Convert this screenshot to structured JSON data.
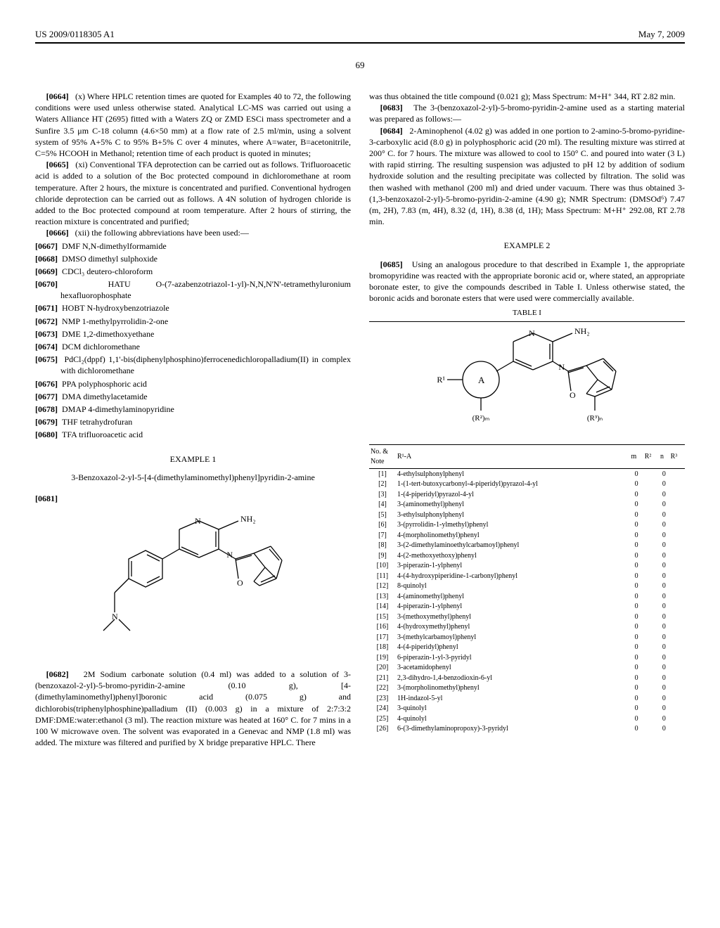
{
  "patent_no": "US 2009/0118305 A1",
  "pub_date": "May 7, 2009",
  "page_number": "69",
  "left": {
    "para0664": {
      "num": "[0664]",
      "text": "(x) Where HPLC retention times are quoted for Examples 40 to 72, the following conditions were used unless otherwise stated. Analytical LC-MS was carried out using a Waters Alliance HT (2695) fitted with a Waters ZQ or ZMD ESCi mass spectrometer and a Sunfire 3.5 μm C-18 column (4.6×50 mm) at a flow rate of 2.5 ml/min, using a solvent system of 95% A+5% C to 95% B+5% C over 4 minutes, where A=water, B=acetonitrile, C=5% HCOOH in Methanol; retention time of each product is quoted in minutes;"
    },
    "para0665": {
      "num": "[0665]",
      "text": "(xi) Conventional TFA deprotection can be carried out as follows. Trifluoroacetic acid is added to a solution of the Boc protected compound in dichloromethane at room temperature. After 2 hours, the mixture is concentrated and purified. Conventional hydrogen chloride deprotection can be carried out as follows. A 4N solution of hydrogen chloride is added to the Boc protected compound at room temperature. After 2 hours of stirring, the reaction mixture is concentrated and purified;"
    },
    "para0666": {
      "num": "[0666]",
      "text": "(xii) the following abbreviations have been used:—"
    },
    "abbrevs": [
      {
        "num": "[0667]",
        "body": "DMF N,N-dimethylformamide"
      },
      {
        "num": "[0668]",
        "body": "DMSO dimethyl sulphoxide"
      },
      {
        "num": "[0669]",
        "body": "CDCl₃ deutero-chloroform"
      },
      {
        "num": "[0670]",
        "body": "HATU O-(7-azabenzotriazol-1-yl)-N,N,N'N'-tetramethyluronium hexafluorophosphate"
      },
      {
        "num": "[0671]",
        "body": "HOBT N-hydroxybenzotriazole"
      },
      {
        "num": "[0672]",
        "body": "NMP 1-methylpyrrolidin-2-one"
      },
      {
        "num": "[0673]",
        "body": "DME 1,2-dimethoxyethane"
      },
      {
        "num": "[0674]",
        "body": "DCM dichloromethane"
      },
      {
        "num": "[0675]",
        "body": "PdCl₂(dppf) 1,1'-bis(diphenylphosphino)ferrocenedichloropalladium(II) in complex with dichloromethane"
      },
      {
        "num": "[0676]",
        "body": "PPA polyphosphoric acid"
      },
      {
        "num": "[0677]",
        "body": "DMA dimethylacetamide"
      },
      {
        "num": "[0678]",
        "body": "DMAP 4-dimethylaminopyridine"
      },
      {
        "num": "[0679]",
        "body": "THF tetrahydrofuran"
      },
      {
        "num": "[0680]",
        "body": "TFA trifluoroacetic acid"
      }
    ],
    "example1_head": "EXAMPLE 1",
    "example1_title": "3-Benzoxazol-2-yl-5-[4-(dimethylaminomethyl)phenyl]pyridin-2-amine",
    "para0681": "[0681]",
    "para0682": {
      "num": "[0682]",
      "text": "2M Sodium carbonate solution (0.4 ml) was added to a solution of 3-(benzoxazol-2-yl)-5-bromo-pyridin-2-amine (0.10 g), [4-(dimethylaminomethyl)phenyl]boronic acid (0.075 g) and dichlorobis(triphenylphosphine)palladium (II) (0.003 g) in a mixture of 2:7:3:2 DMF:DME:water:ethanol (3 ml). The reaction mixture was heated at 160° C. for 7 mins in a 100 W microwave oven. The solvent was evaporated in a Genevac and NMP (1.8 ml) was added. The mixture was filtered and purified by X bridge preparative HPLC. There"
    },
    "structure1": {
      "labels": {
        "N1": "N",
        "N2": "N",
        "N3": "N",
        "NH2": "NH₂",
        "O": "O"
      },
      "stroke": "#000000",
      "line_width": 1.3
    }
  },
  "right": {
    "para0682c": "was thus obtained the title compound (0.021 g); Mass Spectrum: M+H⁺ 344, RT 2.82 min.",
    "para0683": {
      "num": "[0683]",
      "text": "The 3-(benzoxazol-2-yl)-5-bromo-pyridin-2-amine used as a starting material was prepared as follows:—"
    },
    "para0684": {
      "num": "[0684]",
      "text": "2-Aminophenol (4.02 g) was added in one portion to 2-amino-5-bromo-pyridine-3-carboxylic acid (8.0 g) in polyphosphoric acid (20 ml). The resulting mixture was stirred at 200° C. for 7 hours. The mixture was allowed to cool to 150° C. and poured into water (3 L) with rapid stirring. The resulting suspension was adjusted to pH 12 by addition of sodium hydroxide solution and the resulting precipitate was collected by filtration. The solid was then washed with methanol (200 ml) and dried under vacuum. There was thus obtained 3-(1,3-benzoxazol-2-yl)-5-bromo-pyridin-2-amine (4.90 g); NMR Spectrum: (DMSOd⁶) 7.47 (m, 2H), 7.83 (m, 4H), 8.32 (d, 1H), 8.38 (d, 1H); Mass Spectrum: M+H⁺ 292.08, RT 2.78 min."
    },
    "example2_head": "EXAMPLE 2",
    "para0685": {
      "num": "[0685]",
      "text": "Using an analogous procedure to that described in Example 1, the appropriate bromopyridine was reacted with the appropriate boronic acid or, where stated, an appropriate boronate ester, to give the compounds described in Table I. Unless otherwise stated, the boronic acids and boronate esters that were used were commercially available."
    },
    "table_label": "TABLE I",
    "structure2": {
      "labels": {
        "R1": "R¹",
        "A": "A",
        "R2m": "(R²)ₘ",
        "R3n": "(R³)ₙ",
        "N1": "N",
        "N2": "N",
        "NH2": "NH₂",
        "O": "O"
      },
      "stroke": "#000000",
      "line_width": 1.3
    },
    "table": {
      "head": {
        "c1": "No. & Note",
        "c2": "R¹-A",
        "c3": "m",
        "c4": "R²",
        "c5": "n",
        "c6": "R³"
      },
      "rows": [
        [
          "[1]",
          "4-ethylsulphonylphenyl",
          "0",
          "",
          "0",
          ""
        ],
        [
          "[2]",
          "1-(1-tert-butoxycarbonyl-4-piperidyl)pyrazol-4-yl",
          "0",
          "",
          "0",
          ""
        ],
        [
          "[3]",
          "1-(4-piperidyl)pyrazol-4-yl",
          "0",
          "",
          "0",
          ""
        ],
        [
          "[4]",
          "3-(aminomethyl)phenyl",
          "0",
          "",
          "0",
          ""
        ],
        [
          "[5]",
          "3-ethylsulphonylphenyl",
          "0",
          "",
          "0",
          ""
        ],
        [
          "[6]",
          "3-(pyrrolidin-1-ylmethyl)phenyl",
          "0",
          "",
          "0",
          ""
        ],
        [
          "[7]",
          "4-(morpholinomethyl)phenyl",
          "0",
          "",
          "0",
          ""
        ],
        [
          "[8]",
          "3-(2-dimethylaminoethylcarbamoyl)phenyl",
          "0",
          "",
          "0",
          ""
        ],
        [
          "[9]",
          "4-(2-methoxyethoxy)phenyl",
          "0",
          "",
          "0",
          ""
        ],
        [
          "[10]",
          "3-piperazin-1-ylphenyl",
          "0",
          "",
          "0",
          ""
        ],
        [
          "[11]",
          "4-(4-hydroxypiperidine-1-carbonyl)phenyl",
          "0",
          "",
          "0",
          ""
        ],
        [
          "[12]",
          "8-quinolyl",
          "0",
          "",
          "0",
          ""
        ],
        [
          "[13]",
          "4-(aminomethyl)phenyl",
          "0",
          "",
          "0",
          ""
        ],
        [
          "[14]",
          "4-piperazin-1-ylphenyl",
          "0",
          "",
          "0",
          ""
        ],
        [
          "[15]",
          "3-(methoxymethyl)phenyl",
          "0",
          "",
          "0",
          ""
        ],
        [
          "[16]",
          "4-(hydroxymethyl)phenyl",
          "0",
          "",
          "0",
          ""
        ],
        [
          "[17]",
          "3-(methylcarbamoyl)phenyl",
          "0",
          "",
          "0",
          ""
        ],
        [
          "[18]",
          "4-(4-piperidyl)phenyl",
          "0",
          "",
          "0",
          ""
        ],
        [
          "[19]",
          "6-piperazin-1-yl-3-pyridyl",
          "0",
          "",
          "0",
          ""
        ],
        [
          "[20]",
          "3-acetamidophenyl",
          "0",
          "",
          "0",
          ""
        ],
        [
          "[21]",
          "2,3-dihydro-1,4-benzodioxin-6-yl",
          "0",
          "",
          "0",
          ""
        ],
        [
          "[22]",
          "3-(morpholinomethyl)phenyl",
          "0",
          "",
          "0",
          ""
        ],
        [
          "[23]",
          "1H-indazol-5-yl",
          "0",
          "",
          "0",
          ""
        ],
        [
          "[24]",
          "3-quinolyl",
          "0",
          "",
          "0",
          ""
        ],
        [
          "[25]",
          "4-quinolyl",
          "0",
          "",
          "0",
          ""
        ],
        [
          "[26]",
          "6-(3-dimethylaminopropoxy)-3-pyridyl",
          "0",
          "",
          "0",
          ""
        ]
      ]
    }
  }
}
